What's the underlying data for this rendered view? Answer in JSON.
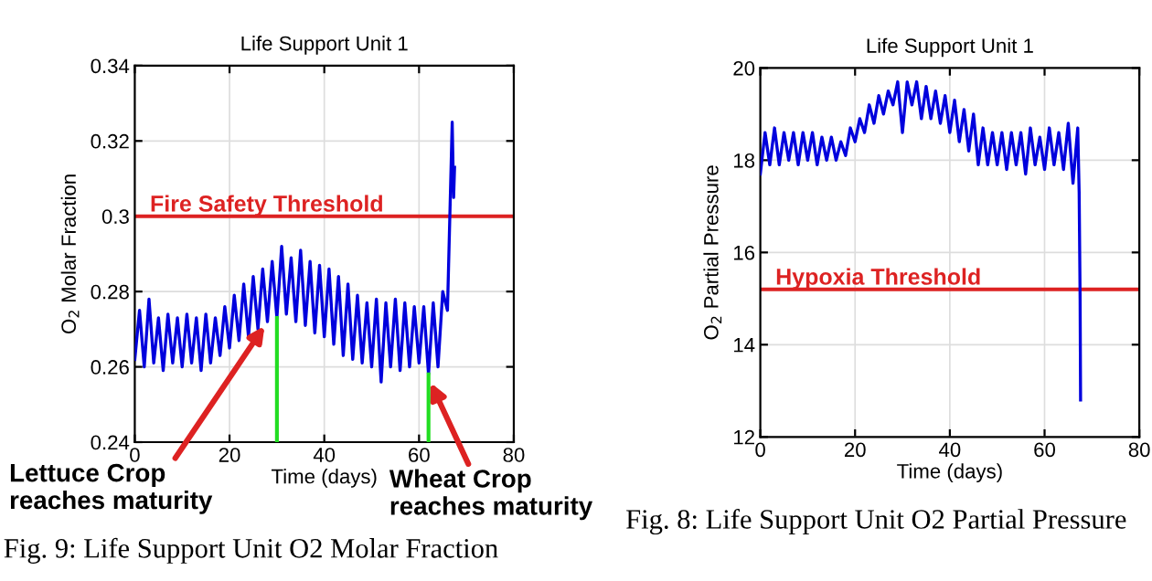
{
  "chart_data": [
    {
      "type": "line",
      "title": "Life Support Unit 1",
      "xlabel": "Time (days)",
      "ylabel": "O$_{2}$ Molar Fraction",
      "xlim": [
        0,
        80
      ],
      "xticks": [
        0,
        20,
        40,
        60,
        80
      ],
      "ylim": [
        0.24,
        0.34
      ],
      "yticks": [
        0.24,
        0.26,
        0.28,
        {
          "value": 0.3,
          "label": "0.3"
        },
        0.32,
        0.34
      ],
      "grid": true,
      "series": [
        {
          "color": "#0000dd",
          "x": [
            0,
            1,
            2,
            3,
            4,
            5,
            6,
            7,
            8,
            9,
            10,
            11,
            12,
            13,
            14,
            15,
            16,
            17,
            18,
            19,
            20,
            21,
            22,
            23,
            24,
            25,
            26,
            27,
            28,
            29,
            30,
            31,
            32,
            33,
            34,
            35,
            36,
            37,
            38,
            39,
            40,
            41,
            42,
            43,
            44,
            45,
            46,
            47,
            48,
            49,
            50,
            51,
            52,
            53,
            54,
            55,
            56,
            57,
            58,
            59,
            60,
            61,
            62,
            63,
            64,
            65,
            66,
            66.5,
            67,
            67.3,
            67.5
          ],
          "values": [
            0.262,
            0.275,
            0.26,
            0.278,
            0.261,
            0.273,
            0.259,
            0.274,
            0.261,
            0.273,
            0.26,
            0.274,
            0.261,
            0.273,
            0.259,
            0.274,
            0.261,
            0.273,
            0.263,
            0.276,
            0.265,
            0.279,
            0.267,
            0.282,
            0.268,
            0.284,
            0.27,
            0.286,
            0.272,
            0.288,
            0.273,
            0.292,
            0.274,
            0.289,
            0.272,
            0.291,
            0.271,
            0.288,
            0.269,
            0.287,
            0.268,
            0.286,
            0.266,
            0.284,
            0.263,
            0.282,
            0.262,
            0.279,
            0.261,
            0.277,
            0.26,
            0.278,
            0.256,
            0.277,
            0.26,
            0.278,
            0.259,
            0.277,
            0.26,
            0.276,
            0.261,
            0.276,
            0.258,
            0.277,
            0.26,
            0.28,
            0.275,
            0.3,
            0.325,
            0.305,
            0.313
          ]
        }
      ],
      "ref_lines": [
        {
          "axis": "y",
          "value": 0.3,
          "label": "Fire Safety Threshold",
          "color": "#dd2222"
        },
        {
          "axis": "x",
          "value": 30,
          "color": "#22dd22"
        },
        {
          "axis": "x",
          "value": 62,
          "color": "#22dd22"
        }
      ],
      "annotations": [
        {
          "text": "Lettuce Crop\nreaches maturity",
          "x": 28,
          "y": 0.272
        },
        {
          "text": "Wheat Crop\nreaches maturity",
          "x": 62,
          "y": 0.257
        },
        "Fig. 9: Life Support Unit O2 Molar Fraction"
      ]
    },
    {
      "type": "line",
      "title": "Life Support Unit 1",
      "xlabel": "Time (days)",
      "ylabel": "O$_{2}$ Partial Pressure",
      "xlim": [
        0,
        80
      ],
      "xticks": [
        0,
        20,
        40,
        60,
        80
      ],
      "ylim": [
        12,
        20
      ],
      "yticks": [
        12,
        14,
        16,
        18,
        20
      ],
      "grid": true,
      "series": [
        {
          "color": "#0000dd",
          "x": [
            0,
            1,
            2,
            3,
            4,
            5,
            6,
            7,
            8,
            9,
            10,
            11,
            12,
            13,
            14,
            15,
            16,
            17,
            18,
            19,
            20,
            21,
            22,
            23,
            24,
            25,
            26,
            27,
            28,
            29,
            30,
            31,
            32,
            33,
            34,
            35,
            36,
            37,
            38,
            39,
            40,
            41,
            42,
            43,
            44,
            45,
            46,
            47,
            48,
            49,
            50,
            51,
            52,
            53,
            54,
            55,
            56,
            57,
            58,
            59,
            60,
            61,
            62,
            63,
            64,
            65,
            66,
            67,
            67.3,
            67.5,
            67.6
          ],
          "values": [
            17.7,
            18.6,
            17.9,
            18.7,
            17.9,
            18.6,
            18.0,
            18.6,
            17.9,
            18.6,
            18.0,
            18.6,
            17.9,
            18.5,
            18.0,
            18.5,
            18.0,
            18.4,
            18.1,
            18.7,
            18.4,
            18.9,
            18.6,
            19.2,
            18.8,
            19.4,
            19.0,
            19.5,
            19.2,
            19.7,
            18.6,
            19.7,
            19.2,
            19.7,
            18.9,
            19.6,
            18.9,
            19.5,
            18.8,
            19.4,
            18.6,
            19.3,
            18.4,
            19.1,
            18.2,
            19.0,
            17.9,
            18.7,
            17.9,
            18.6,
            17.9,
            18.6,
            17.8,
            18.6,
            17.9,
            18.6,
            17.7,
            18.7,
            17.9,
            18.5,
            17.8,
            18.7,
            17.9,
            18.6,
            17.8,
            18.8,
            17.5,
            18.7,
            17.3,
            15.0,
            12.8
          ]
        }
      ],
      "ref_lines": [
        {
          "axis": "y",
          "value": 15.2,
          "label": "Hypoxia Threshold",
          "color": "#dd2222"
        }
      ],
      "annotations": [
        "Fig. 8: Life Support Unit O2 Partial Pressure"
      ]
    }
  ]
}
